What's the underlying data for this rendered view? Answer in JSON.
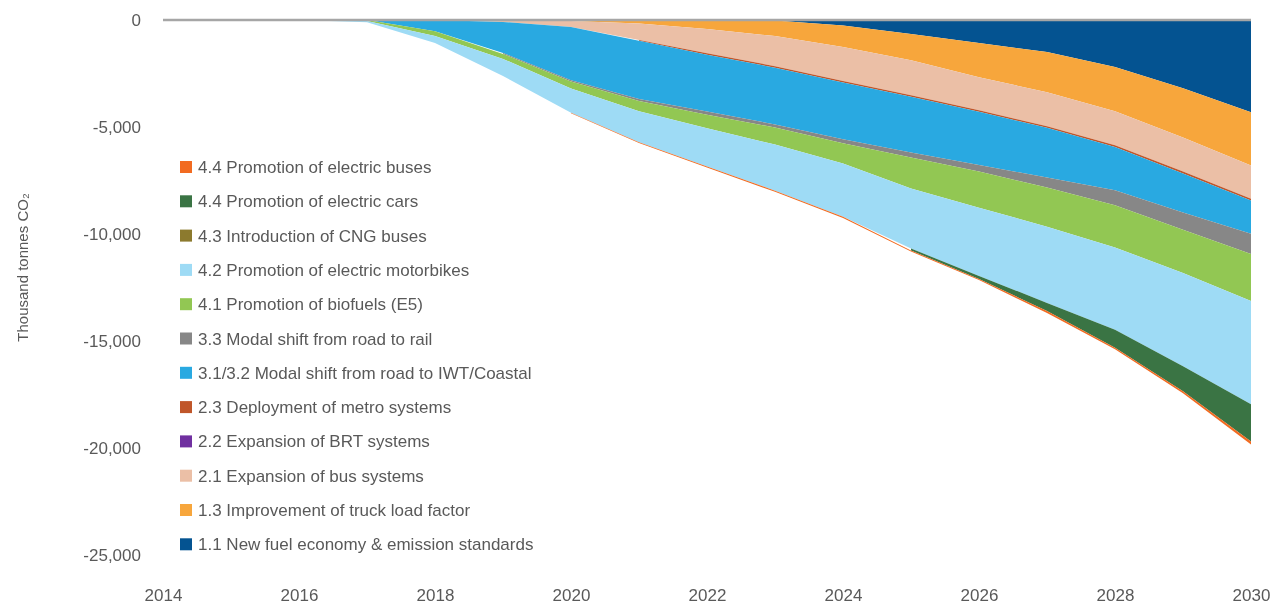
{
  "chart_data": {
    "type": "area",
    "stacked": true,
    "ylabel": "Thousand tonnes CO₂",
    "x": [
      2014,
      2015,
      2016,
      2017,
      2018,
      2019,
      2020,
      2021,
      2022,
      2023,
      2024,
      2025,
      2026,
      2027,
      2028,
      2029,
      2030
    ],
    "xlim": [
      2014,
      2030
    ],
    "xticks": [
      2014,
      2016,
      2018,
      2020,
      2022,
      2024,
      2026,
      2028,
      2030
    ],
    "ylim": [
      -25000,
      0
    ],
    "yticks": [
      {
        "value": -25000,
        "label": "-25,000"
      },
      {
        "value": -20000,
        "label": "-20,000"
      },
      {
        "value": -15000,
        "label": "-15,000"
      },
      {
        "value": -10000,
        "label": "-10,000"
      },
      {
        "value": -5000,
        "label": "-5,000"
      },
      0
    ],
    "grid": false,
    "legend": "left",
    "series": [
      {
        "name": "1.1 New fuel economy & emission standards",
        "color": "#045391",
        "values": [
          null,
          null,
          null,
          null,
          null,
          null,
          null,
          null,
          0,
          -20,
          -260,
          -660,
          -1080,
          -1500,
          -2200,
          -3190,
          -4310
        ]
      },
      {
        "name": "1.3 Improvement of truck load factor",
        "color": "#f7a63c",
        "values": [
          null,
          null,
          null,
          null,
          null,
          0,
          -50,
          -160,
          -420,
          -730,
          -1000,
          -1220,
          -1590,
          -1880,
          -2060,
          -2300,
          -2490
        ]
      },
      {
        "name": "2.1 Expansion of bus systems",
        "color": "#ebbfa6",
        "values": [
          null,
          null,
          null,
          null,
          0,
          -90,
          -280,
          -770,
          -1130,
          -1410,
          -1590,
          -1640,
          -1550,
          -1590,
          -1590,
          -1590,
          -1550
        ]
      },
      {
        "name": "2.2 Expansion of BRT systems",
        "color": "#7030a0",
        "values": [
          null,
          null,
          null,
          null,
          null,
          null,
          null,
          null,
          null,
          null,
          null,
          null,
          null,
          null,
          null,
          null,
          null
        ]
      },
      {
        "name": "2.3 Deployment of metro systems",
        "color": "#c0562a",
        "values": [
          null,
          null,
          null,
          null,
          null,
          null,
          null,
          -40,
          -70,
          -70,
          -70,
          -70,
          -70,
          -70,
          -90,
          -90,
          -90
        ]
      },
      {
        "name": "3.1/3.2 Modal shift from road to IWT/Coastal",
        "color": "#29a9e1",
        "values": [
          0,
          0,
          0,
          0,
          -520,
          -1450,
          -2490,
          -2720,
          -2650,
          -2650,
          -2650,
          -2600,
          -2490,
          -2320,
          -2020,
          -1830,
          -1550
        ]
      },
      {
        "name": "3.3 Modal shift from road to rail",
        "color": "#878787",
        "values": [
          null,
          null,
          null,
          null,
          null,
          -50,
          -50,
          -100,
          -160,
          -140,
          -190,
          -230,
          -300,
          -470,
          -700,
          -800,
          -940
        ]
      },
      {
        "name": "4.1 Promotion of biofuels (E5)",
        "color": "#92c753",
        "values": [
          0,
          0,
          0,
          -50,
          -230,
          -230,
          -330,
          -470,
          -630,
          -800,
          -940,
          -1450,
          -1690,
          -1830,
          -1970,
          -2020,
          -2200
        ]
      },
      {
        "name": "4.2 Promotion of electric motorbikes",
        "color": "#9edbf5",
        "values": [
          0,
          0,
          0,
          -50,
          -330,
          -800,
          -1130,
          -1450,
          -1780,
          -2160,
          -2490,
          -2810,
          -3190,
          -3560,
          -3850,
          -4360,
          -4830
        ]
      },
      {
        "name": "4.3 Introduction of CNG buses",
        "color": "#8c7a2e",
        "values": [
          null,
          null,
          null,
          null,
          null,
          null,
          null,
          null,
          null,
          null,
          null,
          null,
          null,
          null,
          null,
          null,
          null
        ]
      },
      {
        "name": "4.4 Promotion of electric cars",
        "color": "#3a7444",
        "values": [
          null,
          null,
          null,
          null,
          null,
          null,
          null,
          null,
          null,
          null,
          null,
          -90,
          -140,
          -380,
          -840,
          -1170,
          -1740
        ]
      },
      {
        "name": "4.4 Promotion of electric buses",
        "color": "#f26b21",
        "values": [
          null,
          null,
          null,
          null,
          null,
          null,
          -30,
          -40,
          -50,
          -50,
          -60,
          -50,
          -50,
          -90,
          -60,
          -90,
          -140
        ]
      }
    ]
  }
}
